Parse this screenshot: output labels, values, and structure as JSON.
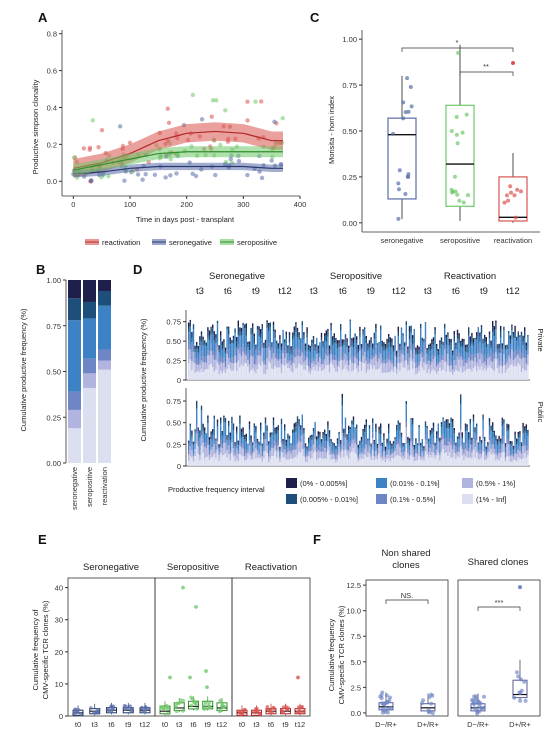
{
  "panels": {
    "A": "A",
    "B": "B",
    "C": "C",
    "D": "D",
    "E": "E",
    "F": "F"
  },
  "colors": {
    "reactivation": "#d9534f",
    "seronegative": "#5a6ea8",
    "seropositive": "#6fc86a",
    "bin1": "#1f1f4b",
    "bin2": "#1d4f7a",
    "bin3": "#3d82c4",
    "bin4": "#6f86c6",
    "bin5": "#b1b4de",
    "bin6": "#dcdff0"
  },
  "chart_data": [
    {
      "id": "A",
      "type": "scatter",
      "xlabel": "Time in days post - transplant",
      "ylabel": "Productive simpson clonality",
      "xticks": [
        0,
        100,
        200,
        300,
        400
      ],
      "yticks": [
        "0.0",
        "0.2",
        "0.4",
        "0.6",
        "0.8"
      ],
      "xlim": [
        -20,
        400
      ],
      "ylim": [
        -0.08,
        0.82
      ],
      "legend": [
        "reactivation",
        "seronegative",
        "seropositive"
      ],
      "series": [
        {
          "name": "reactivation",
          "trend_x": [
            0,
            50,
            100,
            150,
            200,
            250,
            300,
            350
          ],
          "trend_y": [
            0.07,
            0.1,
            0.15,
            0.22,
            0.26,
            0.27,
            0.26,
            0.22
          ]
        },
        {
          "name": "seronegative",
          "trend_x": [
            0,
            50,
            100,
            150,
            200,
            250,
            300,
            350
          ],
          "trend_y": [
            0.04,
            0.05,
            0.07,
            0.08,
            0.08,
            0.08,
            0.08,
            0.07
          ]
        },
        {
          "name": "seropositive",
          "trend_x": [
            0,
            50,
            100,
            150,
            200,
            250,
            300,
            350
          ],
          "trend_y": [
            0.06,
            0.09,
            0.12,
            0.15,
            0.16,
            0.16,
            0.16,
            0.16
          ]
        }
      ]
    },
    {
      "id": "B",
      "type": "bar",
      "ylabel": "Cumulative productive frequency (%)",
      "categories": [
        "seronegative",
        "seropositive",
        "reactivation"
      ],
      "yticks": [
        "0.00",
        "0.25",
        "0.50",
        "0.75",
        "1.00"
      ],
      "series": [
        {
          "name": "(1% - Inf]",
          "values": [
            0.19,
            0.41,
            0.51
          ]
        },
        {
          "name": "(0.5% - 1%]",
          "values": [
            0.1,
            0.08,
            0.05
          ]
        },
        {
          "name": "(0.1% - 0.5%]",
          "values": [
            0.1,
            0.08,
            0.06
          ]
        },
        {
          "name": "(0.01% - 0.1%]",
          "values": [
            0.39,
            0.22,
            0.24
          ]
        },
        {
          "name": "(0.005% - 0.01%]",
          "values": [
            0.12,
            0.09,
            0.08
          ]
        },
        {
          "name": "(0% - 0.005%]",
          "values": [
            0.1,
            0.12,
            0.06
          ]
        }
      ]
    },
    {
      "id": "C",
      "type": "box",
      "ylabel": "Morisita - horn index",
      "categories": [
        "seronegative",
        "seropositive",
        "reactivation"
      ],
      "yticks": [
        "0.00",
        "0.25",
        "0.50",
        "0.75",
        "1.00"
      ],
      "boxes": [
        {
          "q1": 0.13,
          "median": 0.48,
          "q3": 0.57,
          "min": 0.02,
          "max": 0.8
        },
        {
          "q1": 0.09,
          "median": 0.32,
          "q3": 0.64,
          "min": 0.01,
          "max": 0.97
        },
        {
          "q1": 0.01,
          "median": 0.03,
          "q3": 0.25,
          "min": 0.0,
          "max": 0.38
        }
      ],
      "significance": [
        {
          "label": "*"
        },
        {
          "label": "**"
        }
      ]
    },
    {
      "id": "D",
      "type": "bar",
      "ylabel": "Cumulative productive frequency (%)",
      "groups": [
        "Seronegative",
        "Seropositive",
        "Reactivation"
      ],
      "timepoints": [
        "t3",
        "t6",
        "t9",
        "t12",
        "t3",
        "t6",
        "t9",
        "t12",
        "t3",
        "t6",
        "t9",
        "t12"
      ],
      "facets": [
        "Private",
        "Public"
      ],
      "yticks": [
        "0",
        "0.25",
        "0.50",
        "0.75"
      ],
      "legend_title": "Productive frequency interval",
      "legend": [
        "(0% - 0.005%]",
        "(0.01% - 0.1%]",
        "(0.5% - 1%]",
        "(0.005% - 0.01%]",
        "(0.1% - 0.5%]",
        "(1% - Inf]"
      ]
    },
    {
      "id": "E",
      "type": "box",
      "ylabel1": "Cumulative frequency of",
      "ylabel2": "CMV-specific TCR clones (%)",
      "facets": [
        "Seronegative",
        "Seropositive",
        "Reactivation"
      ],
      "categories": [
        "t0",
        "t3",
        "t6",
        "t9",
        "t12"
      ],
      "yticks": [
        "0",
        "10",
        "20",
        "30",
        "40"
      ],
      "medians": [
        [
          1,
          1.5,
          1.8,
          1.8,
          1.8
        ],
        [
          1.5,
          2.5,
          3,
          3,
          2.5
        ],
        [
          1,
          1,
          1.5,
          1.5,
          1.5
        ]
      ]
    },
    {
      "id": "F",
      "type": "box",
      "ylabel1": "Cumulative frequency",
      "ylabel2": "CMV-specific TCR clones (%)",
      "facets": [
        "Non shared clones",
        "Shared clones"
      ],
      "facet_line1": [
        "Non shared",
        "Shared clones"
      ],
      "facet_line2": [
        "clones",
        ""
      ],
      "categories": [
        "D−/R+",
        "D+/R+"
      ],
      "yticks": [
        "0.0",
        "2.5",
        "5.0",
        "7.5",
        "10.0",
        "12.5"
      ],
      "significance": [
        "NS.",
        "***"
      ],
      "medians": [
        [
          0.6,
          0.5
        ],
        [
          0.5,
          1.8
        ]
      ]
    }
  ]
}
